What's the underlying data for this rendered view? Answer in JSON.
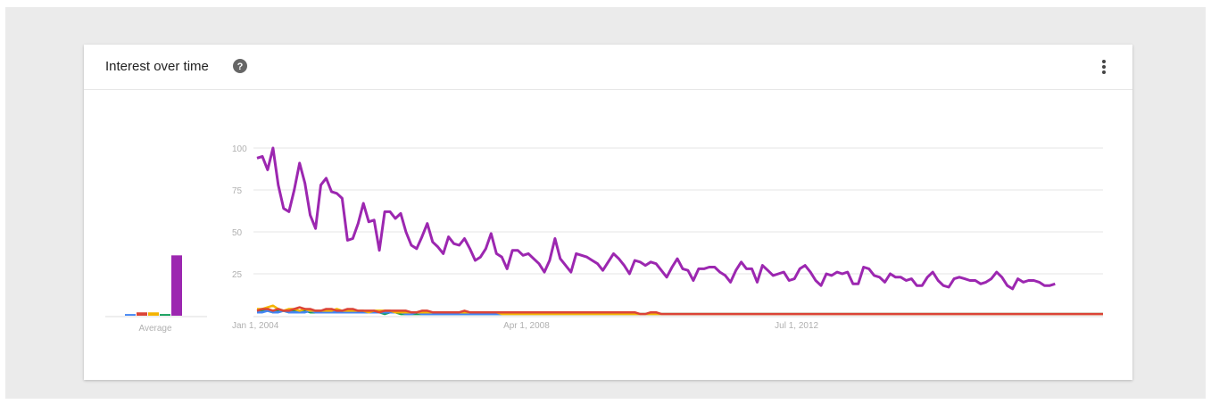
{
  "card": {
    "title": "Interest over time",
    "help_icon": "help-circle-icon",
    "menu_icon": "more-vert-icon"
  },
  "chart_data": {
    "type": "line",
    "title": "Interest over time",
    "ylim": [
      0,
      100
    ],
    "y_ticks": [
      25,
      50,
      75,
      100
    ],
    "x_ticks": [
      "Jan 1, 2004",
      "Apr 1, 2008",
      "Jul 1, 2012"
    ],
    "x_range": [
      "2004-01",
      "2017-04"
    ],
    "grid": true,
    "average": {
      "label": "Average",
      "values": [
        {
          "color": "#4285f4",
          "value": 1
        },
        {
          "color": "#db4437",
          "value": 2
        },
        {
          "color": "#f4b400",
          "value": 2
        },
        {
          "color": "#0f9d58",
          "value": 1
        },
        {
          "color": "#9c27b0",
          "value": 36
        }
      ]
    },
    "series": [
      {
        "color": "#9c27b0",
        "start": "2004-01",
        "values": [
          94,
          95,
          87,
          100,
          78,
          64,
          62,
          75,
          91,
          79,
          60,
          52,
          78,
          82,
          74,
          73,
          70,
          45,
          46,
          55,
          67,
          56,
          57,
          39,
          62,
          62,
          58,
          61,
          50,
          42,
          40,
          47,
          55,
          44,
          41,
          37,
          47,
          43,
          42,
          46,
          40,
          33,
          35,
          40,
          49,
          37,
          35,
          28,
          39,
          39,
          36,
          37,
          34,
          31,
          26,
          33,
          46,
          34,
          30,
          26,
          37,
          36,
          35,
          33,
          31,
          27,
          32,
          37,
          34,
          30,
          25,
          33,
          32,
          30,
          32,
          31,
          27,
          23,
          29,
          34,
          28,
          27,
          21,
          28,
          28,
          29,
          29,
          26,
          24,
          20,
          27,
          32,
          28,
          28,
          20,
          30,
          27,
          24,
          25,
          26,
          21,
          22,
          28,
          30,
          26,
          21,
          18,
          25,
          24,
          26,
          25,
          26,
          19,
          19,
          29,
          28,
          24,
          23,
          20,
          25,
          23,
          23,
          21,
          22,
          18,
          18,
          23,
          26,
          21,
          18,
          17,
          22,
          23,
          22,
          21,
          21,
          19,
          20,
          22,
          26,
          23,
          18,
          16,
          22,
          20,
          21,
          21,
          20,
          18,
          18,
          19
        ]
      },
      {
        "color": "#db4437",
        "start": "2004-01",
        "values": [
          3,
          4,
          4,
          3,
          4,
          3,
          3,
          4,
          5,
          4,
          4,
          3,
          3,
          4,
          4,
          3,
          3,
          4,
          4,
          3,
          3,
          3,
          3,
          2,
          3,
          3,
          3,
          3,
          3,
          2,
          2,
          3,
          3,
          2,
          2,
          2,
          2,
          2,
          2,
          3,
          2,
          2,
          2,
          2,
          2,
          2,
          2,
          2,
          2,
          2,
          2,
          2,
          2,
          2,
          2,
          2,
          2,
          2,
          2,
          2,
          2,
          2,
          2,
          2,
          2,
          2,
          2,
          2,
          2,
          2,
          2,
          2,
          1,
          1,
          2,
          2,
          1,
          1,
          1,
          1,
          1,
          1,
          1,
          1,
          1,
          1,
          1,
          1,
          1,
          1,
          1,
          1,
          1,
          1,
          1,
          1,
          1,
          1,
          1,
          1,
          1,
          1,
          1,
          1,
          1,
          1,
          1,
          1,
          1,
          1,
          1,
          1,
          1,
          1,
          1,
          1,
          1,
          1,
          1,
          1,
          1,
          1,
          1,
          1,
          1,
          1,
          1,
          1,
          1,
          1,
          1,
          1,
          1,
          1,
          1,
          1,
          1,
          1,
          1,
          1,
          1,
          1,
          1,
          1,
          1,
          1,
          1,
          1,
          1,
          1,
          1,
          1,
          1,
          1,
          1,
          1,
          1,
          1,
          1,
          1
        ]
      },
      {
        "color": "#f4b400",
        "start": "2004-01",
        "values": [
          4,
          4,
          5,
          6,
          4,
          3,
          4,
          4,
          3,
          4,
          3,
          3,
          3,
          3,
          3,
          4,
          3,
          3,
          3,
          3,
          3,
          2,
          3,
          3,
          3,
          3,
          2,
          2,
          2,
          2,
          2,
          2,
          2,
          2,
          2,
          2,
          2,
          2,
          2,
          2,
          2,
          2,
          2,
          2,
          2,
          2,
          1,
          1,
          1,
          1,
          1,
          1,
          1,
          1,
          1,
          1,
          1,
          1,
          1,
          1,
          1,
          1,
          1,
          1,
          1,
          1,
          1,
          1,
          1,
          1,
          1,
          1,
          1,
          1,
          1,
          1,
          1,
          1,
          1,
          1,
          1,
          1,
          1,
          1,
          1,
          1,
          1,
          1,
          1,
          1,
          1,
          1,
          1,
          1,
          1,
          1,
          1,
          1,
          1,
          1,
          1,
          1,
          1,
          1,
          1,
          1,
          1,
          1,
          1,
          1,
          1,
          1,
          1,
          1,
          1,
          1,
          1,
          1,
          1,
          1,
          1,
          1,
          1,
          1,
          1,
          1,
          1,
          1,
          1,
          1,
          1,
          1,
          1,
          1,
          1,
          1,
          1,
          1,
          1,
          1,
          1,
          1,
          1,
          1,
          1,
          1,
          1,
          1,
          1,
          1,
          1,
          1,
          1,
          1,
          1,
          1,
          1,
          1,
          1,
          1,
          1,
          1,
          1
        ]
      },
      {
        "color": "#4285f4",
        "start": "2004-01",
        "values": [
          2,
          2,
          3,
          2,
          2,
          3,
          2,
          2,
          2,
          2,
          3,
          2,
          2,
          2,
          2,
          2,
          2,
          2,
          2,
          2,
          2,
          2,
          2,
          2,
          2,
          2,
          2,
          2,
          1,
          1,
          2,
          1,
          1,
          1,
          1,
          1,
          1,
          1,
          1,
          1,
          1,
          1,
          1,
          1,
          1,
          1,
          1,
          1,
          1,
          1,
          1,
          1,
          1,
          1,
          1,
          1,
          1,
          1,
          1,
          1,
          1,
          1,
          1,
          1,
          1,
          1,
          1,
          1,
          1,
          1,
          1,
          1,
          1,
          1,
          1,
          1,
          1,
          1,
          1,
          1,
          1,
          1,
          1,
          1,
          1,
          1,
          1,
          1,
          1,
          1,
          1,
          1,
          1,
          1,
          1,
          1,
          1,
          1,
          1,
          1,
          1,
          1,
          1,
          1,
          1,
          1,
          1,
          1,
          1,
          1,
          1,
          1,
          1,
          1,
          1,
          1,
          1,
          1,
          1,
          1,
          1,
          1,
          1,
          1,
          1,
          1,
          1,
          1,
          1,
          1,
          1,
          1,
          1,
          1,
          1,
          1,
          1,
          1,
          1,
          1,
          1,
          1,
          1,
          1,
          1,
          1,
          1,
          1,
          1,
          1,
          1,
          1,
          1,
          1,
          1,
          1,
          1,
          1,
          1,
          1,
          1,
          1,
          1
        ]
      },
      {
        "color": "#0f9d58",
        "start": "2004-01",
        "values": [
          3,
          3,
          3,
          2,
          3,
          3,
          2,
          3,
          2,
          3,
          2,
          2,
          3,
          2,
          2,
          2,
          2,
          2,
          2,
          2,
          2,
          2,
          2,
          2,
          1,
          2,
          2,
          1,
          1,
          1,
          1,
          1,
          1,
          1,
          1,
          1,
          1,
          1,
          1,
          1,
          1,
          1,
          1,
          1,
          1,
          1,
          1,
          1,
          1,
          1,
          1,
          1,
          1,
          1,
          1,
          1,
          1,
          1,
          1,
          1,
          1,
          1,
          1,
          1,
          1,
          1,
          1,
          1,
          1,
          1,
          1,
          1,
          1,
          1,
          1,
          1,
          1,
          1,
          1,
          1,
          1,
          1,
          1,
          1,
          1,
          1,
          1,
          1,
          1,
          1,
          1,
          1,
          1,
          1,
          1,
          1,
          1,
          1,
          1,
          1,
          1,
          1,
          1,
          1,
          1,
          1,
          1,
          1,
          1,
          1,
          1,
          1,
          1,
          1,
          1,
          1,
          1,
          1,
          1,
          1,
          1,
          1,
          1,
          1,
          1,
          1,
          1,
          1,
          1,
          1,
          1,
          1,
          1,
          1,
          1,
          1,
          1,
          1,
          1,
          1,
          1,
          1,
          1,
          1,
          1,
          1,
          1,
          1,
          1,
          1,
          1,
          1,
          1,
          1,
          1,
          1,
          1,
          1,
          1,
          1,
          1,
          1,
          1
        ]
      }
    ]
  }
}
